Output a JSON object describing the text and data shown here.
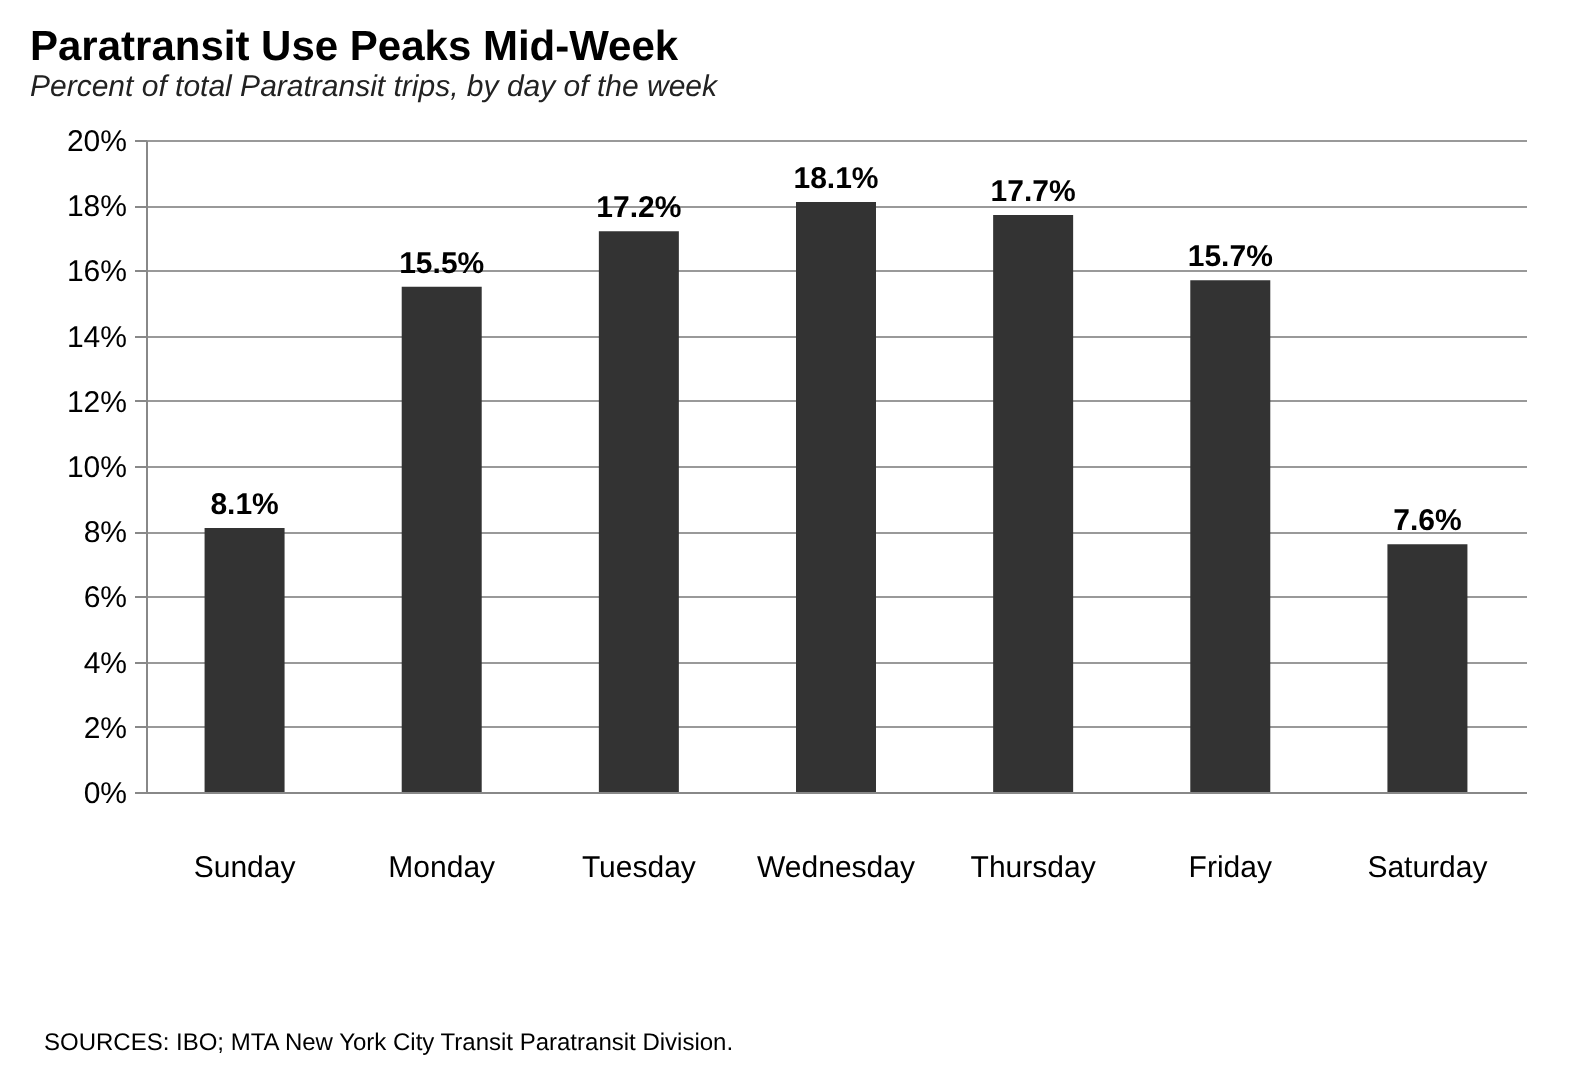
{
  "chart_data": {
    "type": "bar",
    "title": "Paratransit Use Peaks Mid-Week",
    "subtitle": "Percent of total Paratransit trips, by day of the week",
    "categories": [
      "Sunday",
      "Monday",
      "Tuesday",
      "Wednesday",
      "Thursday",
      "Friday",
      "Saturday"
    ],
    "values": [
      8.1,
      15.5,
      17.2,
      18.1,
      17.7,
      15.7,
      7.6
    ],
    "value_labels": [
      "8.1%",
      "15.5%",
      "17.2%",
      "18.1%",
      "17.7%",
      "15.7%",
      "7.6%"
    ],
    "color": "#333333",
    "ylim": [
      0,
      20
    ],
    "yticks": [
      {
        "value": 0,
        "label": "0%"
      },
      {
        "value": 2,
        "label": "2%"
      },
      {
        "value": 4,
        "label": "4%"
      },
      {
        "value": 6,
        "label": "6%"
      },
      {
        "value": 8,
        "label": "8%"
      },
      {
        "value": 10,
        "label": "10%"
      },
      {
        "value": 12,
        "label": "12%"
      },
      {
        "value": 14,
        "label": "14%"
      },
      {
        "value": 16,
        "label": "16%"
      },
      {
        "value": 18,
        "label": "18%"
      },
      {
        "value": 20,
        "label": "20%"
      }
    ],
    "grid": "y",
    "annotations": [
      "SOURCES: IBO; MTA New York City Transit Paratransit Division."
    ]
  }
}
